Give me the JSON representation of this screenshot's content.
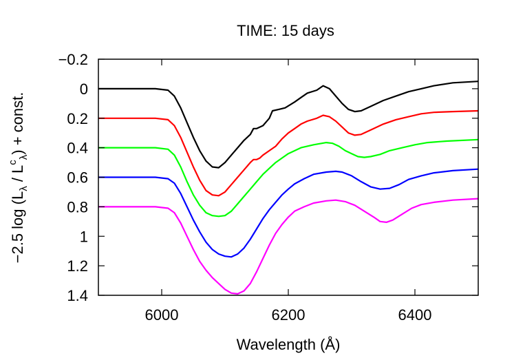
{
  "chart_data": {
    "type": "line",
    "title": "TIME: 15 days",
    "xlabel": "Wavelength (Å)",
    "ylabel": "−2.5 log (Lλ / Lcλ) + const.",
    "ylabel_parts": {
      "prefix": "−2.5 log (L",
      "sub1": "λ",
      "mid": " / L",
      "sup": "c",
      "sub2": "λ",
      "suffix": ") + const."
    },
    "xlim": [
      5900,
      6500
    ],
    "ylim": [
      -0.2,
      1.4
    ],
    "y_inverted": true,
    "x_ticks": [
      6000,
      6200,
      6400
    ],
    "x_tick_labels": [
      "6000",
      "6200",
      "6400"
    ],
    "y_ticks": [
      -0.2,
      0,
      0.2,
      0.4,
      0.6,
      0.8,
      1,
      1.2,
      1.4
    ],
    "y_tick_labels": [
      "−0.2",
      "0",
      "0.2",
      "0.4",
      "0.6",
      "0.8",
      "1",
      "1.2",
      "1.4"
    ],
    "grid": false,
    "legend": "none",
    "series": [
      {
        "color": "#000000",
        "style": "solid",
        "points": [
          [
            5900,
            0.0
          ],
          [
            5990,
            0.0
          ],
          [
            6010,
            0.01
          ],
          [
            6020,
            0.05
          ],
          [
            6030,
            0.13
          ],
          [
            6040,
            0.23
          ],
          [
            6050,
            0.33
          ],
          [
            6060,
            0.42
          ],
          [
            6070,
            0.49
          ],
          [
            6080,
            0.53
          ],
          [
            6090,
            0.535
          ],
          [
            6100,
            0.5
          ],
          [
            6110,
            0.45
          ],
          [
            6120,
            0.4
          ],
          [
            6130,
            0.35
          ],
          [
            6140,
            0.31
          ],
          [
            6145,
            0.27
          ],
          [
            6150,
            0.27
          ],
          [
            6155,
            0.26
          ],
          [
            6160,
            0.25
          ],
          [
            6170,
            0.2
          ],
          [
            6175,
            0.15
          ],
          [
            6185,
            0.14
          ],
          [
            6195,
            0.13
          ],
          [
            6210,
            0.09
          ],
          [
            6220,
            0.06
          ],
          [
            6230,
            0.03
          ],
          [
            6245,
            0.01
          ],
          [
            6255,
            -0.02
          ],
          [
            6265,
            0.0
          ],
          [
            6275,
            0.05
          ],
          [
            6285,
            0.1
          ],
          [
            6295,
            0.14
          ],
          [
            6305,
            0.155
          ],
          [
            6315,
            0.15
          ],
          [
            6330,
            0.12
          ],
          [
            6350,
            0.08
          ],
          [
            6370,
            0.05
          ],
          [
            6390,
            0.02
          ],
          [
            6410,
            0.0
          ],
          [
            6430,
            -0.02
          ],
          [
            6460,
            -0.04
          ],
          [
            6500,
            -0.05
          ]
        ]
      },
      {
        "color": "#ff0000",
        "style": "solid",
        "points": [
          [
            5900,
            0.2
          ],
          [
            5990,
            0.2
          ],
          [
            6010,
            0.21
          ],
          [
            6020,
            0.25
          ],
          [
            6030,
            0.33
          ],
          [
            6040,
            0.43
          ],
          [
            6050,
            0.53
          ],
          [
            6060,
            0.62
          ],
          [
            6070,
            0.69
          ],
          [
            6080,
            0.72
          ],
          [
            6090,
            0.725
          ],
          [
            6100,
            0.7
          ],
          [
            6110,
            0.65
          ],
          [
            6120,
            0.6
          ],
          [
            6130,
            0.55
          ],
          [
            6140,
            0.5
          ],
          [
            6145,
            0.48
          ],
          [
            6150,
            0.48
          ],
          [
            6155,
            0.47
          ],
          [
            6160,
            0.45
          ],
          [
            6170,
            0.42
          ],
          [
            6180,
            0.39
          ],
          [
            6190,
            0.34
          ],
          [
            6200,
            0.3
          ],
          [
            6210,
            0.27
          ],
          [
            6220,
            0.24
          ],
          [
            6230,
            0.22
          ],
          [
            6245,
            0.2
          ],
          [
            6255,
            0.18
          ],
          [
            6265,
            0.19
          ],
          [
            6275,
            0.22
          ],
          [
            6285,
            0.26
          ],
          [
            6295,
            0.3
          ],
          [
            6305,
            0.315
          ],
          [
            6315,
            0.31
          ],
          [
            6330,
            0.28
          ],
          [
            6350,
            0.24
          ],
          [
            6370,
            0.21
          ],
          [
            6390,
            0.19
          ],
          [
            6410,
            0.17
          ],
          [
            6430,
            0.16
          ],
          [
            6460,
            0.155
          ],
          [
            6500,
            0.15
          ]
        ]
      },
      {
        "color": "#00ff00",
        "style": "solid",
        "points": [
          [
            5900,
            0.4
          ],
          [
            5990,
            0.4
          ],
          [
            6010,
            0.41
          ],
          [
            6020,
            0.45
          ],
          [
            6030,
            0.53
          ],
          [
            6040,
            0.63
          ],
          [
            6050,
            0.72
          ],
          [
            6060,
            0.79
          ],
          [
            6070,
            0.84
          ],
          [
            6080,
            0.86
          ],
          [
            6090,
            0.865
          ],
          [
            6100,
            0.86
          ],
          [
            6110,
            0.83
          ],
          [
            6120,
            0.78
          ],
          [
            6130,
            0.73
          ],
          [
            6140,
            0.68
          ],
          [
            6150,
            0.63
          ],
          [
            6160,
            0.58
          ],
          [
            6170,
            0.54
          ],
          [
            6180,
            0.5
          ],
          [
            6190,
            0.47
          ],
          [
            6200,
            0.44
          ],
          [
            6220,
            0.4
          ],
          [
            6240,
            0.38
          ],
          [
            6260,
            0.365
          ],
          [
            6270,
            0.37
          ],
          [
            6280,
            0.39
          ],
          [
            6290,
            0.42
          ],
          [
            6300,
            0.44
          ],
          [
            6310,
            0.46
          ],
          [
            6320,
            0.465
          ],
          [
            6330,
            0.46
          ],
          [
            6345,
            0.445
          ],
          [
            6360,
            0.42
          ],
          [
            6380,
            0.4
          ],
          [
            6400,
            0.38
          ],
          [
            6420,
            0.365
          ],
          [
            6450,
            0.355
          ],
          [
            6500,
            0.345
          ]
        ]
      },
      {
        "color": "#0000ff",
        "style": "solid",
        "points": [
          [
            5900,
            0.6
          ],
          [
            5990,
            0.6
          ],
          [
            6010,
            0.61
          ],
          [
            6020,
            0.64
          ],
          [
            6030,
            0.71
          ],
          [
            6040,
            0.8
          ],
          [
            6050,
            0.89
          ],
          [
            6060,
            0.97
          ],
          [
            6070,
            1.04
          ],
          [
            6080,
            1.09
          ],
          [
            6090,
            1.12
          ],
          [
            6100,
            1.135
          ],
          [
            6110,
            1.14
          ],
          [
            6120,
            1.12
          ],
          [
            6130,
            1.08
          ],
          [
            6140,
            1.02
          ],
          [
            6150,
            0.95
          ],
          [
            6160,
            0.88
          ],
          [
            6170,
            0.82
          ],
          [
            6180,
            0.77
          ],
          [
            6190,
            0.72
          ],
          [
            6200,
            0.68
          ],
          [
            6210,
            0.645
          ],
          [
            6225,
            0.61
          ],
          [
            6240,
            0.58
          ],
          [
            6260,
            0.565
          ],
          [
            6275,
            0.56
          ],
          [
            6285,
            0.565
          ],
          [
            6300,
            0.59
          ],
          [
            6315,
            0.63
          ],
          [
            6330,
            0.665
          ],
          [
            6345,
            0.68
          ],
          [
            6360,
            0.675
          ],
          [
            6375,
            0.65
          ],
          [
            6390,
            0.615
          ],
          [
            6410,
            0.59
          ],
          [
            6430,
            0.57
          ],
          [
            6460,
            0.555
          ],
          [
            6500,
            0.545
          ]
        ]
      },
      {
        "color": "#ff00ff",
        "style": "solid",
        "points": [
          [
            5900,
            0.8
          ],
          [
            5990,
            0.8
          ],
          [
            6010,
            0.81
          ],
          [
            6020,
            0.84
          ],
          [
            6030,
            0.91
          ],
          [
            6040,
            1.0
          ],
          [
            6050,
            1.09
          ],
          [
            6060,
            1.17
          ],
          [
            6070,
            1.23
          ],
          [
            6080,
            1.28
          ],
          [
            6090,
            1.32
          ],
          [
            6100,
            1.36
          ],
          [
            6110,
            1.385
          ],
          [
            6120,
            1.39
          ],
          [
            6130,
            1.37
          ],
          [
            6140,
            1.32
          ],
          [
            6150,
            1.24
          ],
          [
            6160,
            1.15
          ],
          [
            6170,
            1.06
          ],
          [
            6180,
            0.98
          ],
          [
            6190,
            0.92
          ],
          [
            6200,
            0.87
          ],
          [
            6210,
            0.83
          ],
          [
            6225,
            0.8
          ],
          [
            6240,
            0.775
          ],
          [
            6260,
            0.76
          ],
          [
            6275,
            0.755
          ],
          [
            6290,
            0.765
          ],
          [
            6305,
            0.79
          ],
          [
            6320,
            0.83
          ],
          [
            6335,
            0.87
          ],
          [
            6345,
            0.9
          ],
          [
            6355,
            0.905
          ],
          [
            6365,
            0.89
          ],
          [
            6380,
            0.85
          ],
          [
            6395,
            0.81
          ],
          [
            6410,
            0.785
          ],
          [
            6430,
            0.77
          ],
          [
            6460,
            0.755
          ],
          [
            6500,
            0.745
          ]
        ]
      }
    ]
  }
}
